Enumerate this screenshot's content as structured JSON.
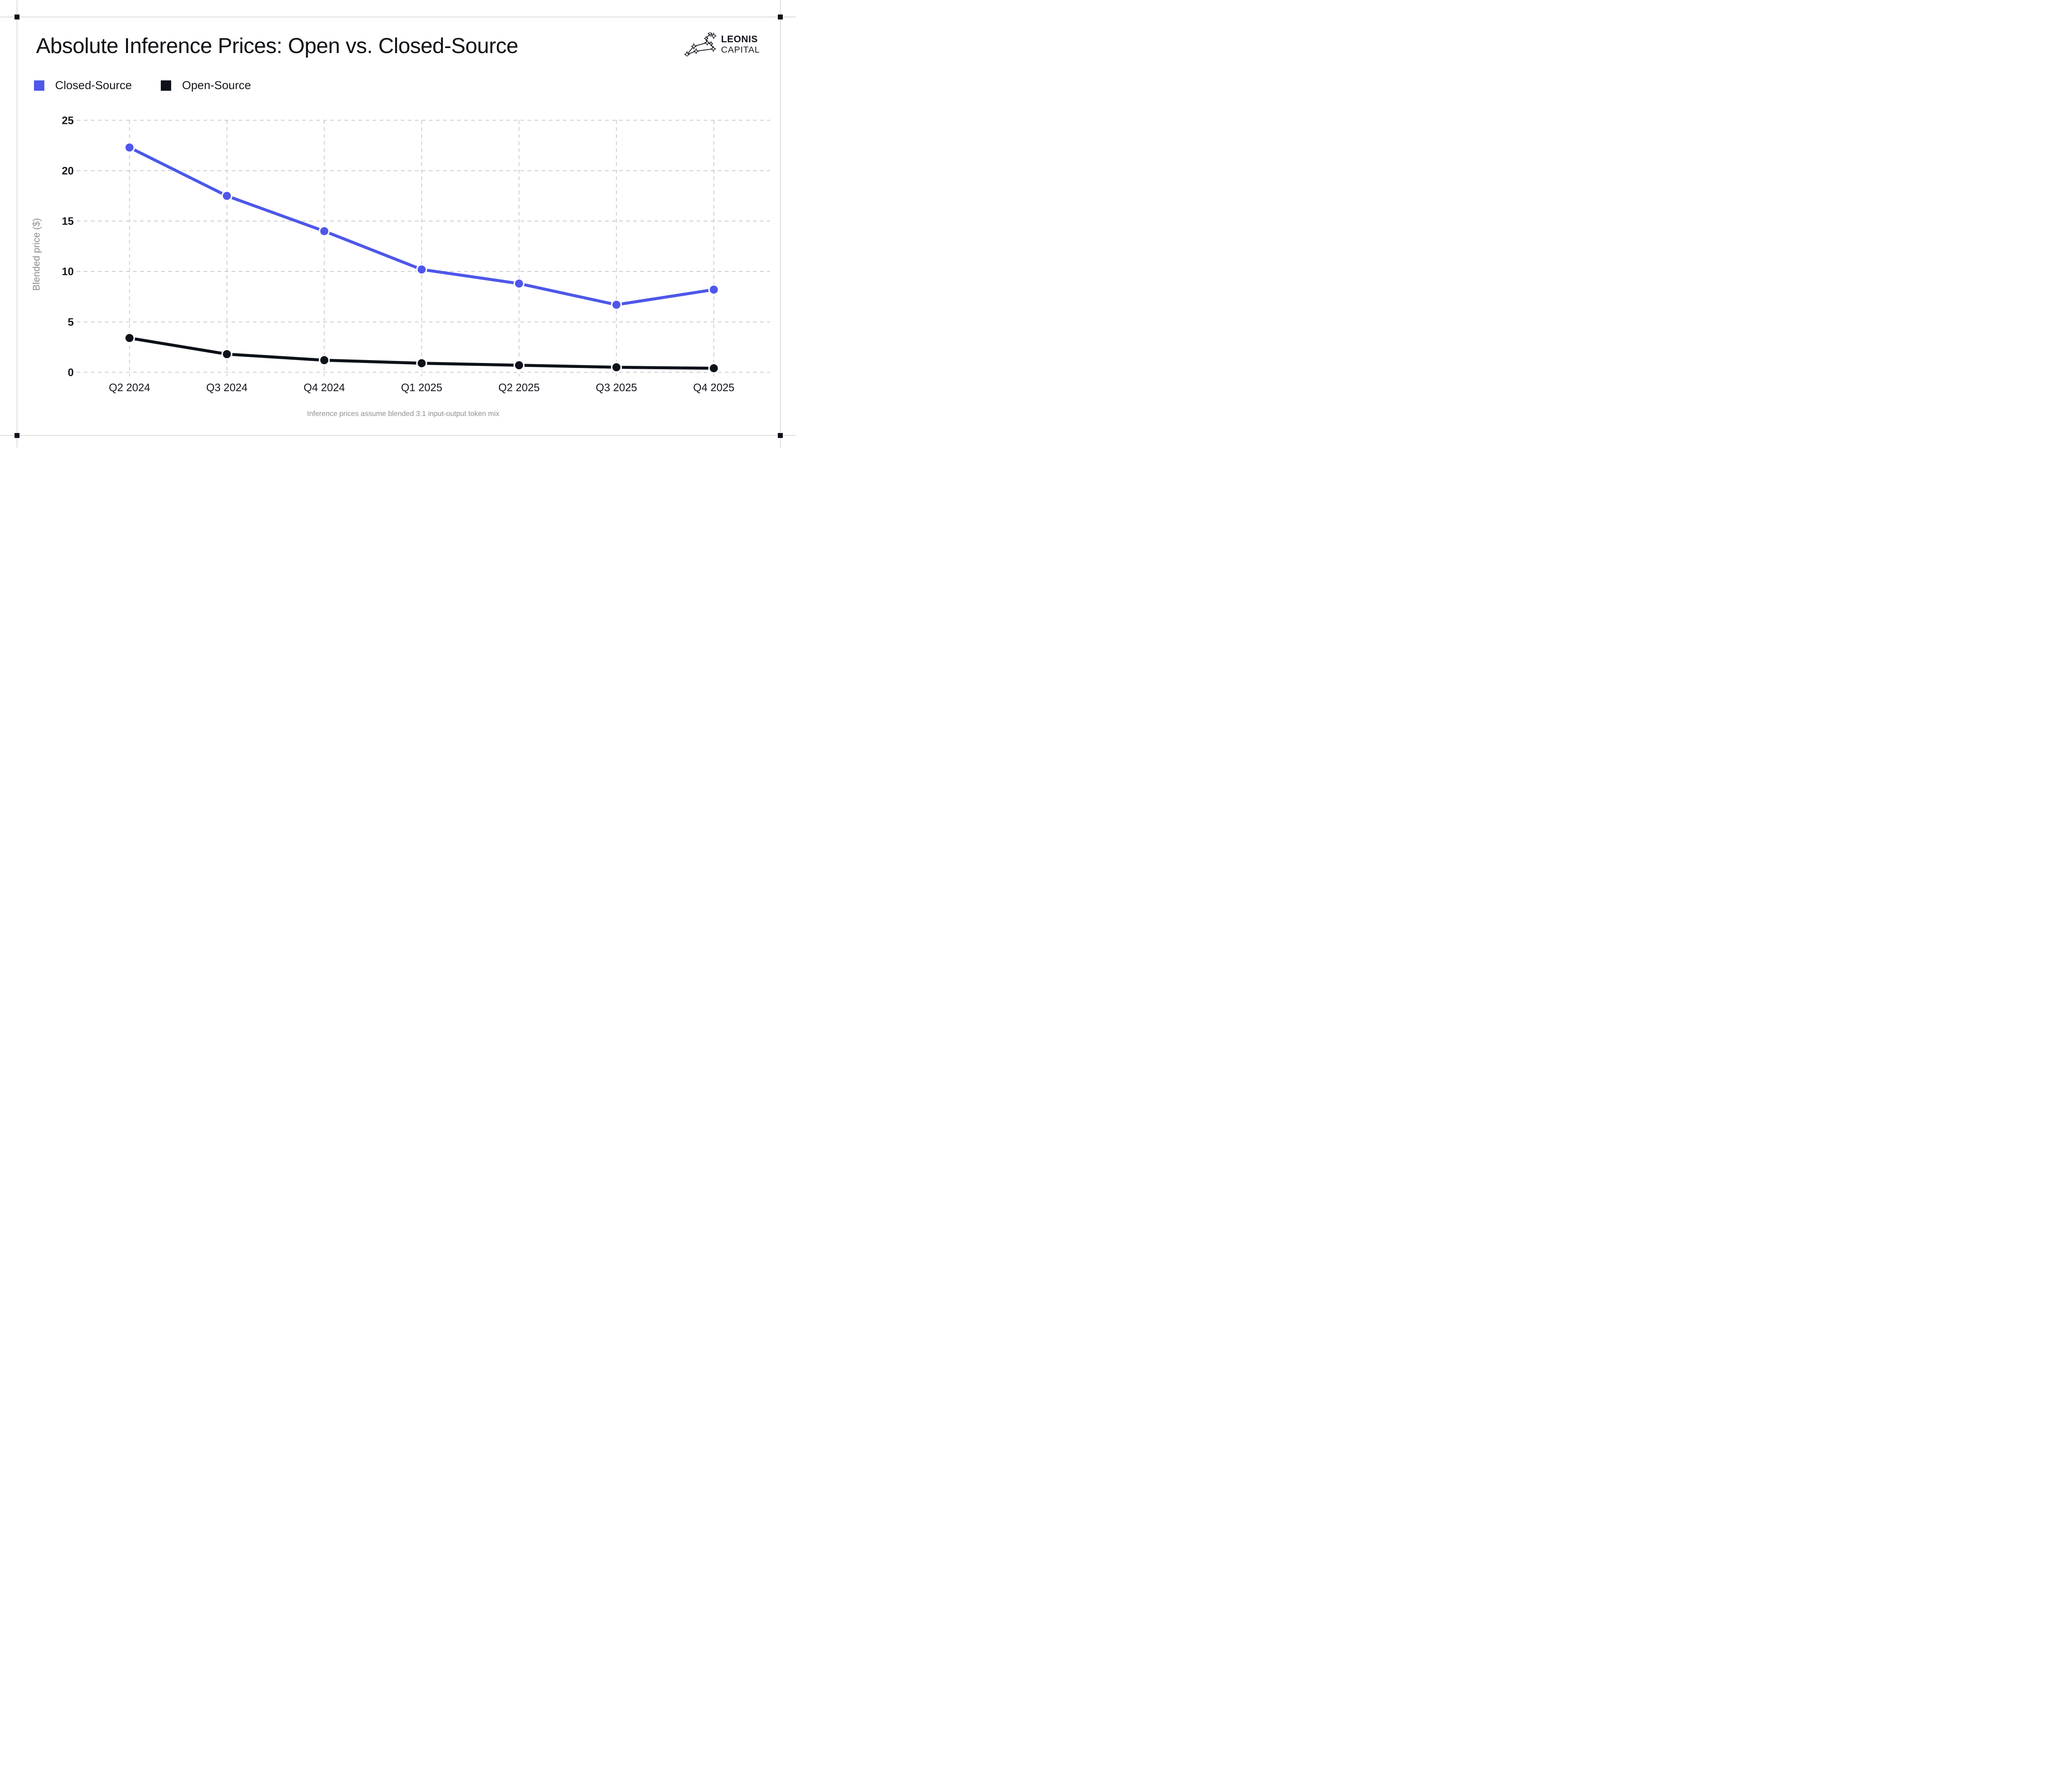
{
  "header": {
    "title": "Absolute Inference Prices: Open vs. Closed-Source"
  },
  "brand": {
    "name_line1": "LEONIS",
    "name_line2": "CAPITAL",
    "logo_icon": "leo-constellation-icon",
    "color": "#11141b"
  },
  "legend": {
    "items": [
      {
        "label": "Closed-Source",
        "color": "#4e57e9"
      },
      {
        "label": "Open-Source",
        "color": "#0d1119"
      }
    ]
  },
  "chart_data": {
    "type": "line",
    "title": "Absolute Inference Prices: Open vs. Closed-Source",
    "categories": [
      "Q2 2024",
      "Q3 2024",
      "Q4 2024",
      "Q1 2025",
      "Q2 2025",
      "Q3 2025",
      "Q4 2025"
    ],
    "series": [
      {
        "name": "Closed-Source",
        "color": "#4e57e9",
        "values": [
          22.3,
          17.5,
          14.0,
          10.2,
          8.8,
          6.7,
          8.2
        ]
      },
      {
        "name": "Open-Source",
        "color": "#0d1119",
        "values": [
          3.4,
          1.8,
          1.2,
          0.9,
          0.7,
          0.5,
          0.4
        ]
      }
    ],
    "xlabel": "",
    "ylabel": "Blended price ($)",
    "yticks": [
      0,
      5,
      10,
      15,
      20,
      25
    ],
    "ylim": [
      0,
      25
    ],
    "grid": "dashed",
    "grid_color": "#c6c6c6",
    "tick_color": "#14161d",
    "legend_position": "top-left",
    "footnote": "Inference prices assume blended 3:1 input-output token mix"
  }
}
